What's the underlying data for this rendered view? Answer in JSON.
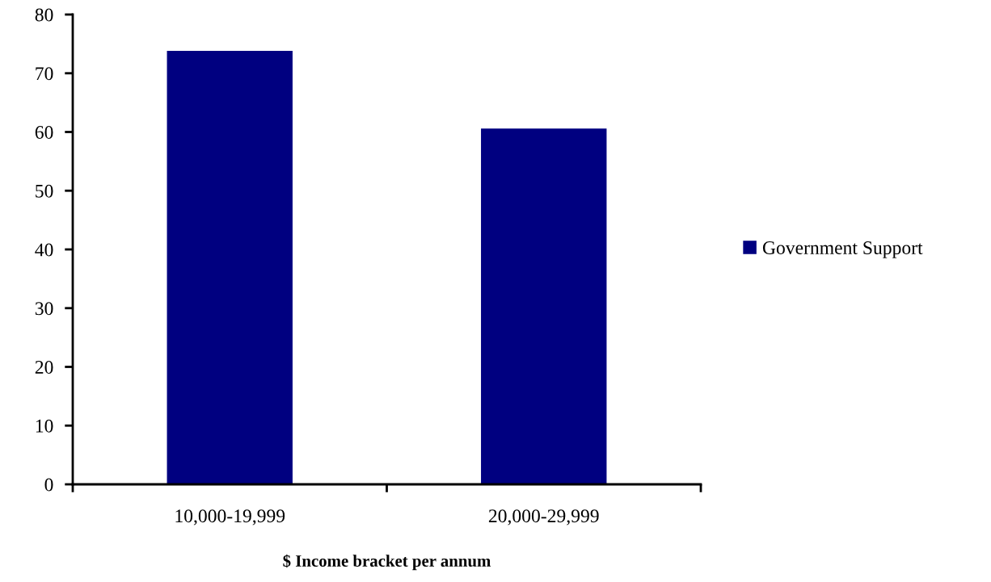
{
  "chart_data": {
    "type": "bar",
    "xlabel": "$ Income bracket per annum",
    "categories": [
      "10,000-19,999",
      "20,000-29,999"
    ],
    "series": [
      {
        "name": "Government Support",
        "color": "#000080",
        "values": [
          73.8,
          60.6
        ]
      }
    ],
    "ylim": [
      0,
      80
    ],
    "yticks": [
      0,
      10,
      20,
      30,
      40,
      50,
      60,
      70,
      80
    ],
    "grid": false,
    "legend": "right"
  }
}
